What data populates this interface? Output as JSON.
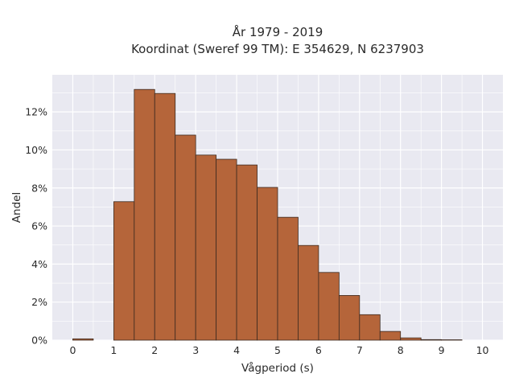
{
  "chart_data": {
    "type": "bar",
    "title": "År 1979 - 2019",
    "subtitle": "Koordinat (Sweref 99 TM): E 354629, N 6237903",
    "xlabel": "Vågperiod (s)",
    "ylabel": "Andel",
    "xlim": [
      -0.5,
      10.5
    ],
    "ylim": [
      0,
      0.1395
    ],
    "x_ticks": [
      0,
      1,
      2,
      3,
      4,
      5,
      6,
      7,
      8,
      9,
      10
    ],
    "x_tick_labels": [
      "0",
      "1",
      "2",
      "3",
      "4",
      "5",
      "6",
      "7",
      "8",
      "9",
      "10"
    ],
    "y_ticks": [
      0,
      0.02,
      0.04,
      0.06,
      0.08,
      0.1,
      0.12
    ],
    "y_tick_labels": [
      "0%",
      "2%",
      "4%",
      "6%",
      "8%",
      "10%",
      "12%"
    ],
    "bin_width": 0.5,
    "bins": [
      {
        "start": 0.0,
        "value": 0.0007
      },
      {
        "start": 1.0,
        "value": 0.0728
      },
      {
        "start": 1.5,
        "value": 0.1318
      },
      {
        "start": 2.0,
        "value": 0.1297
      },
      {
        "start": 2.5,
        "value": 0.1078
      },
      {
        "start": 3.0,
        "value": 0.0973
      },
      {
        "start": 3.5,
        "value": 0.0951
      },
      {
        "start": 4.0,
        "value": 0.0921
      },
      {
        "start": 4.5,
        "value": 0.0803
      },
      {
        "start": 5.0,
        "value": 0.0646
      },
      {
        "start": 5.5,
        "value": 0.0498
      },
      {
        "start": 6.0,
        "value": 0.0356
      },
      {
        "start": 6.5,
        "value": 0.0235
      },
      {
        "start": 7.0,
        "value": 0.0134
      },
      {
        "start": 7.5,
        "value": 0.0046
      },
      {
        "start": 8.0,
        "value": 0.0012
      },
      {
        "start": 8.5,
        "value": 0.0003
      },
      {
        "start": 9.0,
        "value": 0.0002
      }
    ],
    "grid": true,
    "legend": false,
    "colors": {
      "bar_fill": "#b5653a",
      "bar_edge": "#3c2a20",
      "plot_background": "#e9e9f1",
      "grid": "#ffffff"
    }
  }
}
